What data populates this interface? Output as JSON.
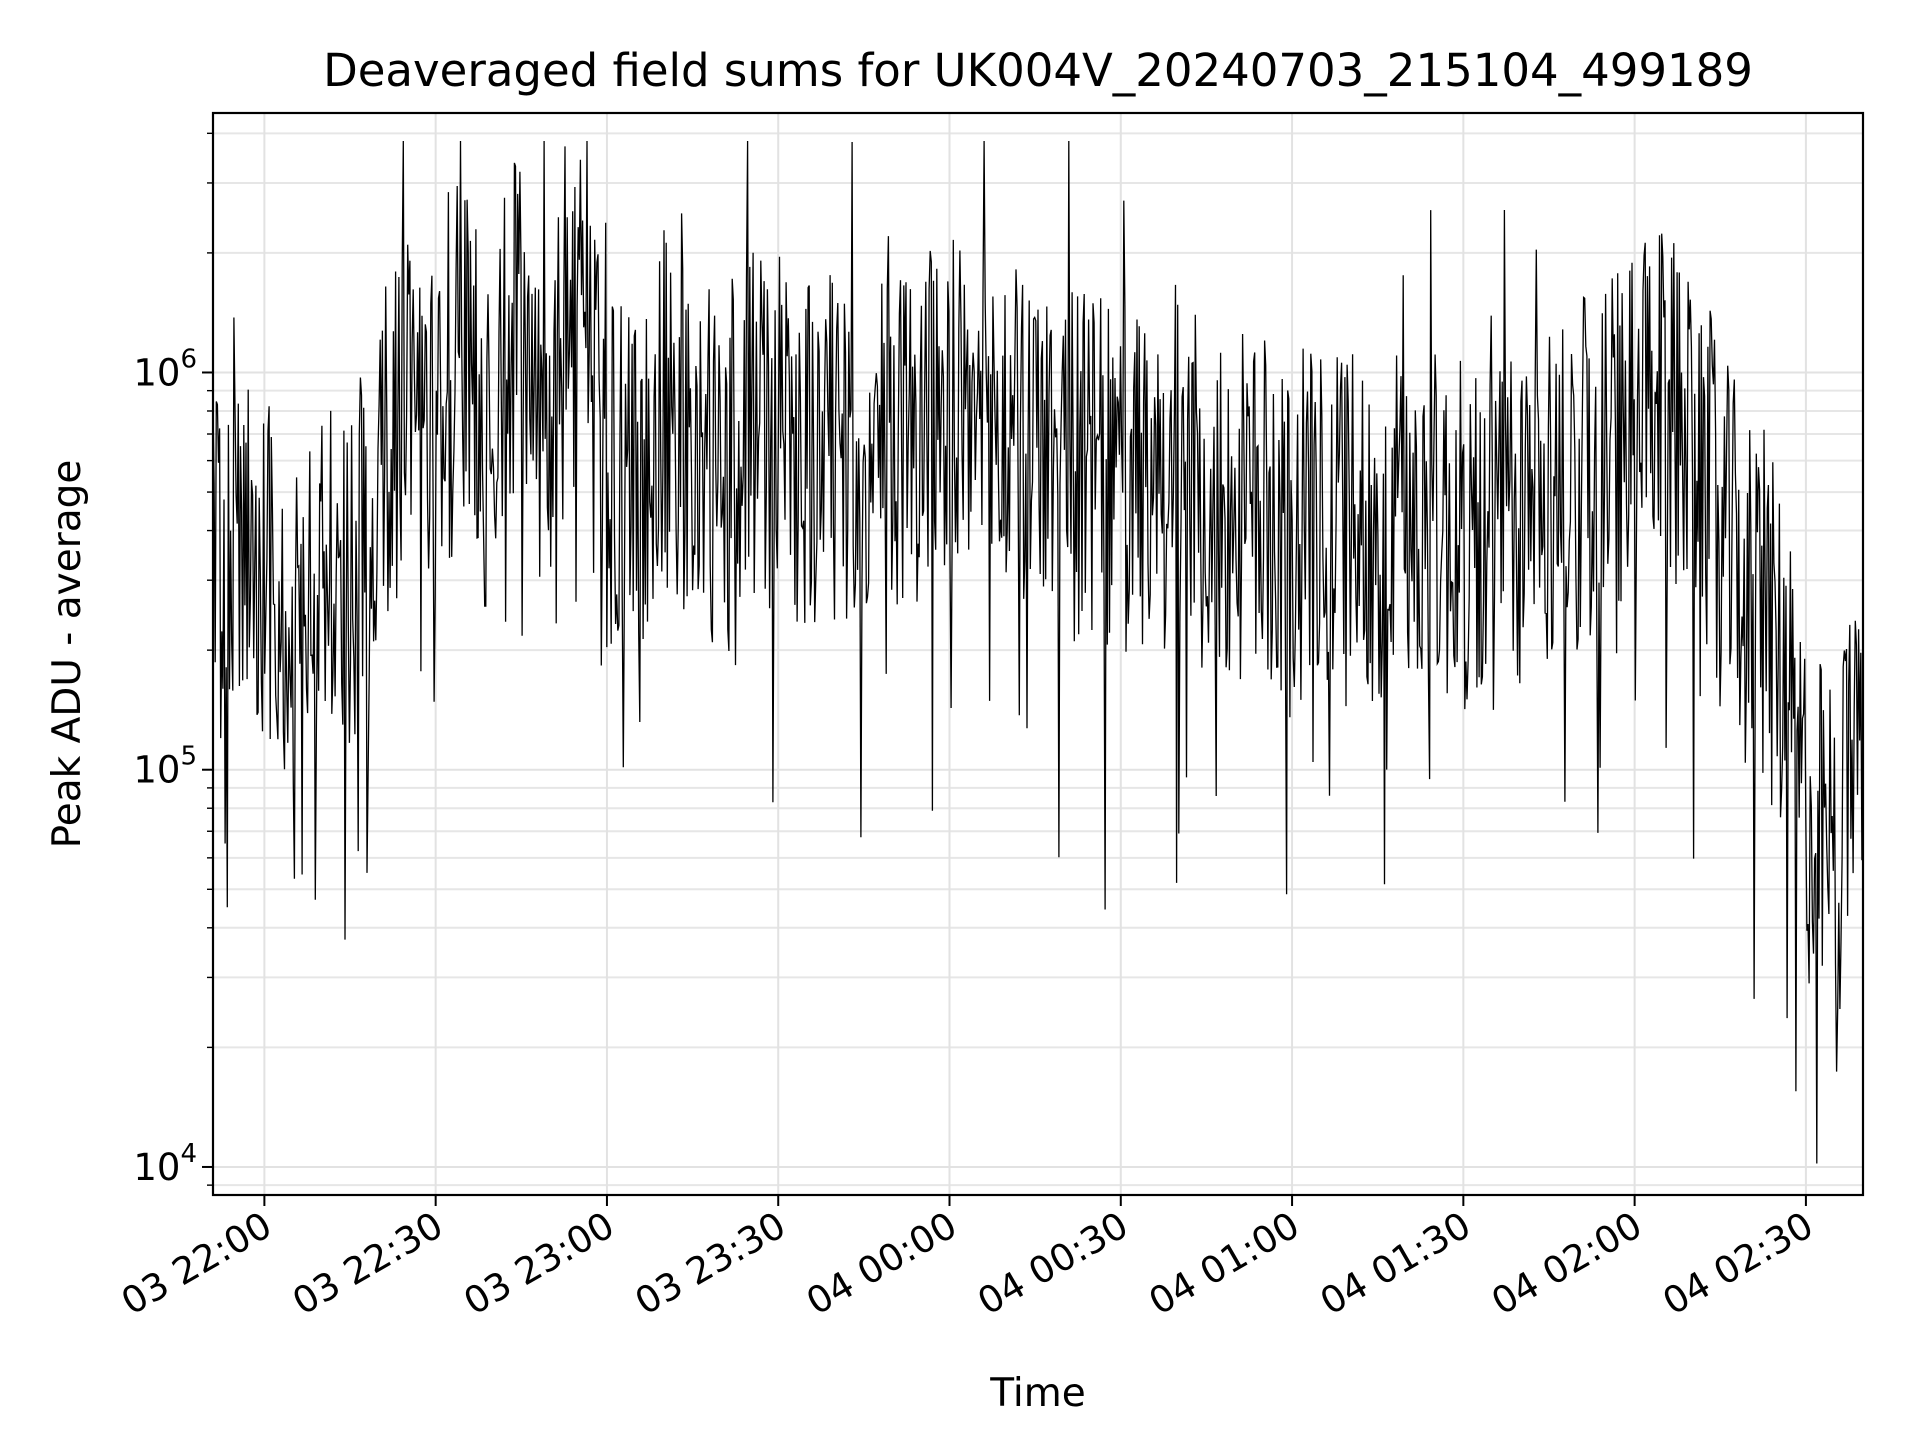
{
  "chart_data": {
    "type": "line",
    "title": "Deaveraged field sums for UK004V_20240703_215104_499189",
    "xlabel": "Time",
    "ylabel": "Peak ADU - average",
    "yscale": "log",
    "grid": true,
    "xlim": [
      "2024-07-03 21:51",
      "2024-07-04 02:40"
    ],
    "ylim": [
      8500,
      4500000
    ],
    "x_ticks": [
      {
        "value": "2024-07-03 22:00",
        "label": "03 22:00"
      },
      {
        "value": "2024-07-03 22:30",
        "label": "03 22:30"
      },
      {
        "value": "2024-07-03 23:00",
        "label": "03 23:00"
      },
      {
        "value": "2024-07-03 23:30",
        "label": "03 23:30"
      },
      {
        "value": "2024-07-04 00:00",
        "label": "04 00:00"
      },
      {
        "value": "2024-07-04 00:30",
        "label": "04 00:30"
      },
      {
        "value": "2024-07-04 01:00",
        "label": "04 01:00"
      },
      {
        "value": "2024-07-04 01:30",
        "label": "04 01:30"
      },
      {
        "value": "2024-07-04 02:00",
        "label": "04 02:00"
      },
      {
        "value": "2024-07-04 02:30",
        "label": "04 02:30"
      }
    ],
    "y_ticks": [
      {
        "value": 10000,
        "base": "10",
        "exp": "4"
      },
      {
        "value": 100000,
        "base": "10",
        "exp": "5"
      },
      {
        "value": 1000000,
        "base": "10",
        "exp": "6"
      }
    ],
    "series": [
      {
        "color": "#000000",
        "x": [
          "2024-07-03 21:51",
          "2024-07-03 21:55",
          "2024-07-03 22:00",
          "2024-07-03 22:05",
          "2024-07-03 22:10",
          "2024-07-03 22:15",
          "2024-07-03 22:20",
          "2024-07-03 22:25",
          "2024-07-03 22:30",
          "2024-07-03 22:35",
          "2024-07-03 22:40",
          "2024-07-03 22:45",
          "2024-07-03 22:50",
          "2024-07-03 22:55",
          "2024-07-03 23:00",
          "2024-07-03 23:05",
          "2024-07-03 23:10",
          "2024-07-03 23:15",
          "2024-07-03 23:20",
          "2024-07-03 23:25",
          "2024-07-03 23:30",
          "2024-07-03 23:35",
          "2024-07-03 23:40",
          "2024-07-03 23:45",
          "2024-07-03 23:50",
          "2024-07-03 23:55",
          "2024-07-04 00:00",
          "2024-07-04 00:05",
          "2024-07-04 00:10",
          "2024-07-04 00:15",
          "2024-07-04 00:20",
          "2024-07-04 00:25",
          "2024-07-04 00:30",
          "2024-07-04 00:35",
          "2024-07-04 00:40",
          "2024-07-04 00:45",
          "2024-07-04 00:50",
          "2024-07-04 00:55",
          "2024-07-04 01:00",
          "2024-07-04 01:05",
          "2024-07-04 01:10",
          "2024-07-04 01:15",
          "2024-07-04 01:20",
          "2024-07-04 01:25",
          "2024-07-04 01:30",
          "2024-07-04 01:35",
          "2024-07-04 01:40",
          "2024-07-04 01:45",
          "2024-07-04 01:50",
          "2024-07-04 01:55",
          "2024-07-04 02:00",
          "2024-07-04 02:05",
          "2024-07-04 02:10",
          "2024-07-04 02:15",
          "2024-07-04 02:20",
          "2024-07-04 02:25",
          "2024-07-04 02:30",
          "2024-07-04 02:35",
          "2024-07-04 02:40"
        ],
        "y": [
          300000,
          350000,
          350000,
          200000,
          280000,
          300000,
          600000,
          800000,
          600000,
          1100000,
          800000,
          1400000,
          750000,
          1500000,
          500000,
          550000,
          700000,
          650000,
          550000,
          750000,
          700000,
          600000,
          650000,
          580000,
          700000,
          750000,
          800000,
          750000,
          700000,
          650000,
          600000,
          560000,
          520000,
          500000,
          600000,
          450000,
          450000,
          440000,
          420000,
          400000,
          400000,
          420000,
          420000,
          410000,
          380000,
          380000,
          420000,
          500000,
          560000,
          650000,
          750000,
          800000,
          800000,
          400000,
          300000,
          200000,
          80000,
          60000,
          120000
        ]
      }
    ]
  }
}
